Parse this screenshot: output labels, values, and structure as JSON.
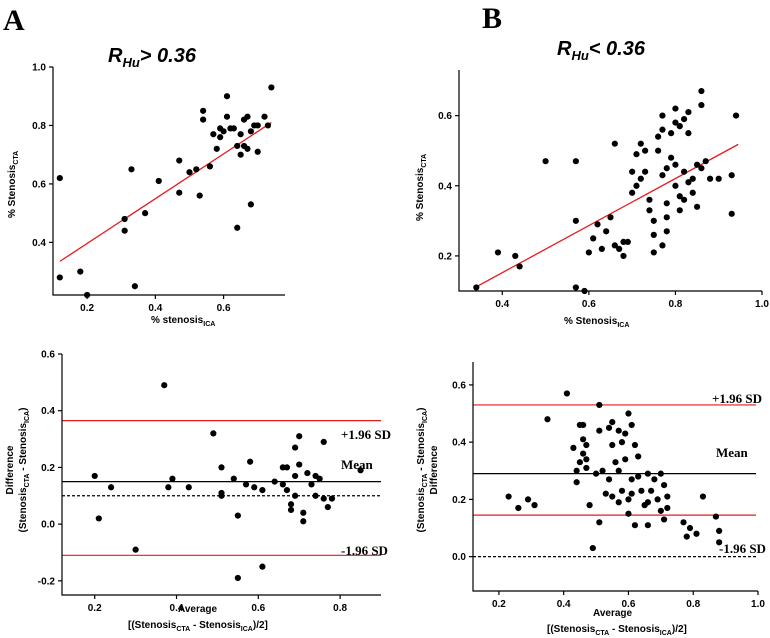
{
  "panels": [
    {
      "letter": "A",
      "title_main": "R",
      "title_sub": "Hu",
      "title_rest": "> 0.36"
    },
    {
      "letter": "B",
      "title_main": "R",
      "title_sub": "Hu",
      "title_rest": "< 0.36"
    }
  ],
  "colors": {
    "points": "#000000",
    "regression": "#e8191b",
    "limits": "#e8191b",
    "mean": "#000000"
  },
  "chart_data": [
    {
      "id": "A-scatter",
      "type": "scatter",
      "xlim": [
        0.1,
        0.78
      ],
      "ylim": [
        0.22,
        1.0
      ],
      "xticks": [
        0.2,
        0.4,
        0.6
      ],
      "yticks": [
        0.4,
        0.6,
        0.8,
        1.0
      ],
      "xtick_labels": [
        "0.2",
        "0.4",
        "0.6"
      ],
      "ytick_labels": [
        "0.4",
        "0.6",
        "0.8",
        "1.0"
      ],
      "xlabel": "% stenosis",
      "xlabel_sub": "ICA",
      "ylabel": "% Stenosis",
      "ylabel_sub": "CTA",
      "regression": {
        "x": [
          0.12,
          0.74
        ],
        "y": [
          0.335,
          0.81
        ]
      },
      "points": [
        [
          0.12,
          0.62
        ],
        [
          0.12,
          0.28
        ],
        [
          0.18,
          0.3
        ],
        [
          0.2,
          0.22
        ],
        [
          0.31,
          0.48
        ],
        [
          0.31,
          0.44
        ],
        [
          0.33,
          0.65
        ],
        [
          0.34,
          0.25
        ],
        [
          0.37,
          0.5
        ],
        [
          0.41,
          0.61
        ],
        [
          0.47,
          0.68
        ],
        [
          0.47,
          0.57
        ],
        [
          0.5,
          0.64
        ],
        [
          0.52,
          0.65
        ],
        [
          0.53,
          0.56
        ],
        [
          0.54,
          0.85
        ],
        [
          0.54,
          0.82
        ],
        [
          0.56,
          0.66
        ],
        [
          0.57,
          0.77
        ],
        [
          0.58,
          0.72
        ],
        [
          0.59,
          0.79
        ],
        [
          0.59,
          0.76
        ],
        [
          0.6,
          0.78
        ],
        [
          0.61,
          0.9
        ],
        [
          0.61,
          0.83
        ],
        [
          0.62,
          0.79
        ],
        [
          0.63,
          0.79
        ],
        [
          0.64,
          0.73
        ],
        [
          0.64,
          0.45
        ],
        [
          0.65,
          0.77
        ],
        [
          0.65,
          0.7
        ],
        [
          0.66,
          0.82
        ],
        [
          0.66,
          0.73
        ],
        [
          0.67,
          0.83
        ],
        [
          0.67,
          0.72
        ],
        [
          0.68,
          0.78
        ],
        [
          0.68,
          0.53
        ],
        [
          0.69,
          0.8
        ],
        [
          0.7,
          0.8
        ],
        [
          0.7,
          0.71
        ],
        [
          0.72,
          0.83
        ],
        [
          0.73,
          0.8
        ],
        [
          0.74,
          0.93
        ]
      ]
    },
    {
      "id": "B-scatter",
      "type": "scatter",
      "xlim": [
        0.3,
        1.0
      ],
      "ylim": [
        0.1,
        0.73
      ],
      "xticks": [
        0.4,
        0.6,
        0.8,
        1.0
      ],
      "yticks": [
        0.2,
        0.4,
        0.6
      ],
      "xtick_labels": [
        "0.4",
        "0.6",
        "0.8",
        "1.0"
      ],
      "ytick_labels": [
        "0.2",
        "0.4",
        "0.6"
      ],
      "xlabel": "% Stenosis",
      "xlabel_sub": "ICA",
      "ylabel": "% Stenosis",
      "ylabel_sub": "CTA",
      "regression": {
        "x": [
          0.34,
          0.945
        ],
        "y": [
          0.112,
          0.518
        ]
      },
      "points": [
        [
          0.34,
          0.11
        ],
        [
          0.39,
          0.21
        ],
        [
          0.43,
          0.2
        ],
        [
          0.44,
          0.17
        ],
        [
          0.5,
          0.47
        ],
        [
          0.57,
          0.3
        ],
        [
          0.57,
          0.11
        ],
        [
          0.57,
          0.47
        ],
        [
          0.59,
          0.1
        ],
        [
          0.6,
          0.21
        ],
        [
          0.61,
          0.25
        ],
        [
          0.62,
          0.29
        ],
        [
          0.63,
          0.22
        ],
        [
          0.64,
          0.27
        ],
        [
          0.65,
          0.31
        ],
        [
          0.66,
          0.23
        ],
        [
          0.66,
          0.52
        ],
        [
          0.67,
          0.22
        ],
        [
          0.68,
          0.24
        ],
        [
          0.68,
          0.2
        ],
        [
          0.69,
          0.24
        ],
        [
          0.7,
          0.38
        ],
        [
          0.7,
          0.44
        ],
        [
          0.71,
          0.4
        ],
        [
          0.71,
          0.49
        ],
        [
          0.72,
          0.52
        ],
        [
          0.72,
          0.42
        ],
        [
          0.73,
          0.44
        ],
        [
          0.73,
          0.5
        ],
        [
          0.74,
          0.36
        ],
        [
          0.74,
          0.33
        ],
        [
          0.75,
          0.3
        ],
        [
          0.75,
          0.26
        ],
        [
          0.75,
          0.21
        ],
        [
          0.76,
          0.5
        ],
        [
          0.76,
          0.54
        ],
        [
          0.77,
          0.56
        ],
        [
          0.77,
          0.6
        ],
        [
          0.77,
          0.43
        ],
        [
          0.77,
          0.23
        ],
        [
          0.78,
          0.45
        ],
        [
          0.78,
          0.35
        ],
        [
          0.78,
          0.31
        ],
        [
          0.78,
          0.27
        ],
        [
          0.79,
          0.55
        ],
        [
          0.79,
          0.48
        ],
        [
          0.8,
          0.46
        ],
        [
          0.8,
          0.58
        ],
        [
          0.8,
          0.62
        ],
        [
          0.8,
          0.4
        ],
        [
          0.81,
          0.37
        ],
        [
          0.81,
          0.33
        ],
        [
          0.81,
          0.57
        ],
        [
          0.82,
          0.59
        ],
        [
          0.82,
          0.44
        ],
        [
          0.82,
          0.36
        ],
        [
          0.83,
          0.61
        ],
        [
          0.83,
          0.55
        ],
        [
          0.83,
          0.41
        ],
        [
          0.84,
          0.42
        ],
        [
          0.84,
          0.38
        ],
        [
          0.85,
          0.46
        ],
        [
          0.85,
          0.34
        ],
        [
          0.86,
          0.67
        ],
        [
          0.86,
          0.63
        ],
        [
          0.86,
          0.45
        ],
        [
          0.87,
          0.47
        ],
        [
          0.88,
          0.42
        ],
        [
          0.9,
          0.42
        ],
        [
          0.93,
          0.43
        ],
        [
          0.93,
          0.32
        ],
        [
          0.94,
          0.6
        ]
      ]
    },
    {
      "id": "A-blandaltman",
      "type": "scatter",
      "xlim": [
        0.12,
        0.9
      ],
      "ylim": [
        -0.25,
        0.6
      ],
      "xticks": [
        0.2,
        0.4,
        0.6,
        0.8
      ],
      "yticks": [
        -0.2,
        0.0,
        0.2,
        0.4,
        0.6
      ],
      "xtick_labels": [
        "0.2",
        "0.4",
        "0.6",
        "0.8"
      ],
      "ytick_labels": [
        "-0.2",
        "0.0",
        "0.2",
        "0.4",
        "0.6"
      ],
      "xlabel": "Average",
      "xlabel2_pre": "[(Stenosis",
      "xlabel2_sub1": "CTA",
      "xlabel2_mid": " - Stenosis",
      "xlabel2_sub2": "ICA",
      "xlabel2_post": ")/2]",
      "ylabel": "Difference",
      "ylabel2_pre": "(Stenosis",
      "ylabel2_sub1": "CTA",
      "ylabel2_mid": " - Stenosis",
      "ylabel2_sub2": "ICA",
      "ylabel2_post": ")",
      "lines": {
        "upper": 0.365,
        "mean": 0.15,
        "lower": -0.11,
        "dashed": 0.1
      },
      "line_labels": {
        "upper": "+1.96 SD",
        "mean": "Mean",
        "lower": "-1.96 SD"
      },
      "points": [
        [
          0.2,
          0.17
        ],
        [
          0.21,
          0.02
        ],
        [
          0.24,
          0.13
        ],
        [
          0.3,
          -0.09
        ],
        [
          0.37,
          0.49
        ],
        [
          0.38,
          0.13
        ],
        [
          0.39,
          0.16
        ],
        [
          0.43,
          0.13
        ],
        [
          0.49,
          0.32
        ],
        [
          0.51,
          0.2
        ],
        [
          0.51,
          0.11
        ],
        [
          0.51,
          0.1
        ],
        [
          0.54,
          0.16
        ],
        [
          0.55,
          0.03
        ],
        [
          0.55,
          -0.19
        ],
        [
          0.57,
          0.14
        ],
        [
          0.58,
          0.22
        ],
        [
          0.59,
          0.13
        ],
        [
          0.61,
          0.12
        ],
        [
          0.61,
          -0.15
        ],
        [
          0.64,
          0.15
        ],
        [
          0.66,
          0.2
        ],
        [
          0.66,
          0.14
        ],
        [
          0.67,
          0.2
        ],
        [
          0.67,
          0.12
        ],
        [
          0.68,
          0.07
        ],
        [
          0.68,
          0.05
        ],
        [
          0.69,
          0.27
        ],
        [
          0.69,
          0.17
        ],
        [
          0.69,
          0.1
        ],
        [
          0.7,
          0.31
        ],
        [
          0.7,
          0.21
        ],
        [
          0.71,
          0.04
        ],
        [
          0.71,
          0.01
        ],
        [
          0.72,
          0.18
        ],
        [
          0.73,
          0.14
        ],
        [
          0.74,
          0.17
        ],
        [
          0.74,
          0.1
        ],
        [
          0.75,
          0.16
        ],
        [
          0.76,
          0.29
        ],
        [
          0.76,
          0.09
        ],
        [
          0.77,
          0.06
        ],
        [
          0.78,
          0.09
        ],
        [
          0.85,
          0.19
        ]
      ]
    },
    {
      "id": "B-blandaltman",
      "type": "scatter",
      "xlim": [
        0.12,
        1.0
      ],
      "ylim": [
        -0.12,
        0.68
      ],
      "xticks": [
        0.2,
        0.4,
        0.6,
        0.8,
        1.0
      ],
      "yticks": [
        0.0,
        0.2,
        0.4,
        0.6
      ],
      "xtick_labels": [
        "0.2",
        "0.4",
        "0.6",
        "0.8",
        "1.0"
      ],
      "ytick_labels": [
        "0.0",
        "0.2",
        "0.4",
        "0.6"
      ],
      "xlabel": "Average",
      "xlabel2_pre": "[(Stenosis",
      "xlabel2_sub1": "CTA",
      "xlabel2_mid": " - Stenosis",
      "xlabel2_sub2": "ICA",
      "xlabel2_post": ")/2]",
      "ylabel": "Difference",
      "ylabel2_pre": "(Stenosis",
      "ylabel2_sub1": "CTA",
      "ylabel2_mid": " - Stenosis",
      "ylabel2_sub2": "ICA",
      "ylabel2_post": ")",
      "lines": {
        "upper": 0.53,
        "mean": 0.29,
        "lower": 0.145,
        "dashed": 0.0
      },
      "line_labels": {
        "upper": "+1.96 SD",
        "mean": "Mean",
        "lower": "-1.96 SD"
      },
      "points": [
        [
          0.23,
          0.21
        ],
        [
          0.26,
          0.17
        ],
        [
          0.29,
          0.2
        ],
        [
          0.31,
          0.18
        ],
        [
          0.35,
          0.48
        ],
        [
          0.41,
          0.57
        ],
        [
          0.43,
          0.38
        ],
        [
          0.44,
          0.3
        ],
        [
          0.44,
          0.26
        ],
        [
          0.45,
          0.46
        ],
        [
          0.45,
          0.33
        ],
        [
          0.46,
          0.46
        ],
        [
          0.46,
          0.41
        ],
        [
          0.46,
          0.36
        ],
        [
          0.47,
          0.39
        ],
        [
          0.47,
          0.34
        ],
        [
          0.47,
          0.31
        ],
        [
          0.48,
          0.18
        ],
        [
          0.49,
          0.03
        ],
        [
          0.5,
          0.29
        ],
        [
          0.51,
          0.53
        ],
        [
          0.51,
          0.44
        ],
        [
          0.51,
          0.12
        ],
        [
          0.52,
          0.3
        ],
        [
          0.53,
          0.22
        ],
        [
          0.54,
          0.45
        ],
        [
          0.54,
          0.27
        ],
        [
          0.55,
          0.47
        ],
        [
          0.55,
          0.39
        ],
        [
          0.55,
          0.21
        ],
        [
          0.56,
          0.33
        ],
        [
          0.57,
          0.44
        ],
        [
          0.57,
          0.3
        ],
        [
          0.57,
          0.19
        ],
        [
          0.58,
          0.4
        ],
        [
          0.58,
          0.23
        ],
        [
          0.59,
          0.43
        ],
        [
          0.59,
          0.34
        ],
        [
          0.6,
          0.5
        ],
        [
          0.6,
          0.2
        ],
        [
          0.6,
          0.15
        ],
        [
          0.61,
          0.46
        ],
        [
          0.61,
          0.27
        ],
        [
          0.61,
          0.22
        ],
        [
          0.62,
          0.39
        ],
        [
          0.62,
          0.11
        ],
        [
          0.63,
          0.35
        ],
        [
          0.63,
          0.28
        ],
        [
          0.64,
          0.23
        ],
        [
          0.65,
          0.18
        ],
        [
          0.66,
          0.29
        ],
        [
          0.66,
          0.19
        ],
        [
          0.66,
          0.11
        ],
        [
          0.67,
          0.23
        ],
        [
          0.68,
          0.27
        ],
        [
          0.69,
          0.2
        ],
        [
          0.7,
          0.29
        ],
        [
          0.7,
          0.16
        ],
        [
          0.71,
          0.25
        ],
        [
          0.71,
          0.13
        ],
        [
          0.72,
          0.21
        ],
        [
          0.72,
          0.17
        ],
        [
          0.77,
          0.12
        ],
        [
          0.78,
          0.07
        ],
        [
          0.79,
          0.1
        ],
        [
          0.81,
          0.08
        ],
        [
          0.83,
          0.21
        ],
        [
          0.87,
          0.14
        ],
        [
          0.88,
          0.09
        ],
        [
          0.88,
          0.05
        ]
      ]
    }
  ]
}
